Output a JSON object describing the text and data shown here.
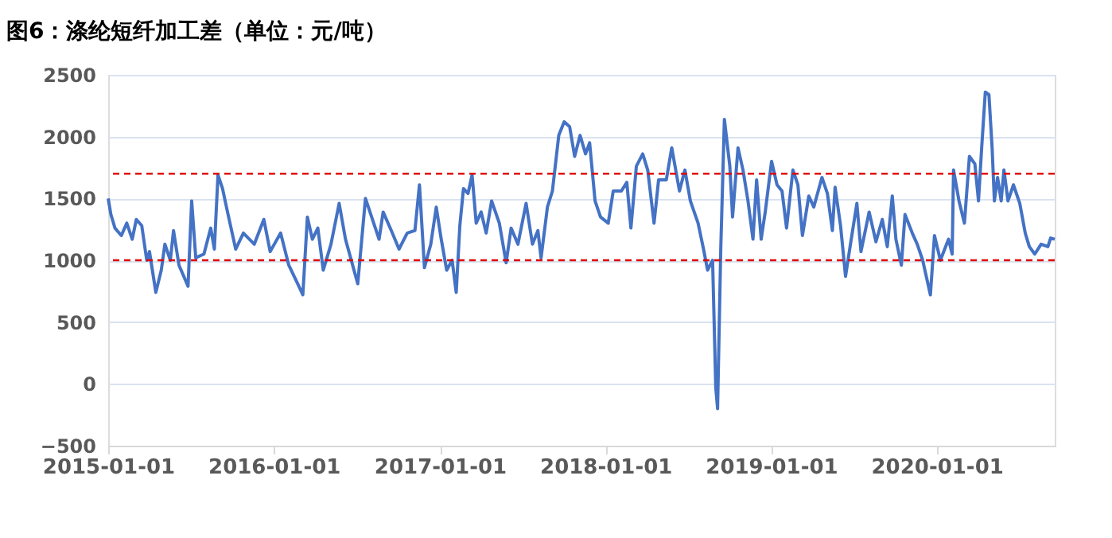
{
  "chart_data": {
    "type": "line",
    "title": "图6：涤纶短纤加工差（单位：元/吨）",
    "x": [
      "2015-01-01",
      "2015-01-07",
      "2015-01-16",
      "2015-01-30",
      "2015-02-11",
      "2015-02-23",
      "2015-03-04",
      "2015-03-16",
      "2015-03-27",
      "2015-04-02",
      "2015-04-16",
      "2015-04-28",
      "2015-05-06",
      "2015-05-18",
      "2015-05-25",
      "2015-06-06",
      "2015-06-26",
      "2015-07-04",
      "2015-07-13",
      "2015-07-31",
      "2015-08-15",
      "2015-08-23",
      "2015-08-31",
      "2015-09-10",
      "2015-09-21",
      "2015-10-09",
      "2015-10-26",
      "2015-11-19",
      "2015-12-10",
      "2015-12-24",
      "2016-01-16",
      "2016-02-03",
      "2016-02-20",
      "2016-03-05",
      "2016-03-15",
      "2016-03-26",
      "2016-04-07",
      "2016-04-19",
      "2016-05-06",
      "2016-05-24",
      "2016-06-07",
      "2016-07-04",
      "2016-07-21",
      "2016-08-20",
      "2016-08-29",
      "2016-09-16",
      "2016-10-03",
      "2016-10-21",
      "2016-11-07",
      "2016-11-17",
      "2016-11-28",
      "2016-12-12",
      "2016-12-24",
      "2017-01-04",
      "2017-01-16",
      "2017-01-28",
      "2017-02-06",
      "2017-02-14",
      "2017-02-22",
      "2017-03-04",
      "2017-03-13",
      "2017-03-22",
      "2017-04-02",
      "2017-04-13",
      "2017-04-25",
      "2017-05-12",
      "2017-05-27",
      "2017-06-07",
      "2017-06-22",
      "2017-07-10",
      "2017-07-24",
      "2017-08-05",
      "2017-08-12",
      "2017-08-26",
      "2017-09-06",
      "2017-09-20",
      "2017-10-02",
      "2017-10-14",
      "2017-10-25",
      "2017-11-06",
      "2017-11-18",
      "2017-11-27",
      "2017-12-09",
      "2017-12-21",
      "2018-01-07",
      "2018-01-18",
      "2018-02-05",
      "2018-02-17",
      "2018-02-26",
      "2018-03-10",
      "2018-03-24",
      "2018-04-04",
      "2018-04-18",
      "2018-04-28",
      "2018-05-15",
      "2018-05-27",
      "2018-06-13",
      "2018-06-25",
      "2018-07-07",
      "2018-07-24",
      "2018-08-05",
      "2018-08-14",
      "2018-08-25",
      "2018-09-01",
      "2018-09-05",
      "2018-09-12",
      "2018-09-20",
      "2018-10-02",
      "2018-10-08",
      "2018-10-20",
      "2018-10-31",
      "2018-11-11",
      "2018-11-22",
      "2018-11-30",
      "2018-12-10",
      "2018-12-19",
      "2019-01-02",
      "2019-01-14",
      "2019-01-25",
      "2019-02-04",
      "2019-02-18",
      "2019-03-01",
      "2019-03-11",
      "2019-03-25",
      "2019-04-05",
      "2019-04-23",
      "2019-05-05",
      "2019-05-16",
      "2019-05-22",
      "2019-06-03",
      "2019-06-14",
      "2019-06-24",
      "2019-07-09",
      "2019-07-18",
      "2019-08-05",
      "2019-08-20",
      "2019-09-03",
      "2019-09-14",
      "2019-09-25",
      "2019-10-03",
      "2019-10-15",
      "2019-10-23",
      "2019-11-08",
      "2019-11-19",
      "2019-12-01",
      "2019-12-18",
      "2019-12-27",
      "2020-01-09",
      "2020-01-27",
      "2020-02-04",
      "2020-02-07",
      "2020-02-19",
      "2020-03-02",
      "2020-03-13",
      "2020-03-25",
      "2020-04-02",
      "2020-04-09",
      "2020-04-17",
      "2020-04-25",
      "2020-05-02",
      "2020-05-07",
      "2020-05-14",
      "2020-05-22",
      "2020-05-28",
      "2020-06-06",
      "2020-06-18",
      "2020-07-02",
      "2020-07-14",
      "2020-07-23",
      "2020-08-04",
      "2020-08-18",
      "2020-09-02",
      "2020-09-08",
      "2020-09-17"
    ],
    "series": [
      {
        "color": "#4472c4",
        "values": [
          1500,
          1370,
          1260,
          1200,
          1300,
          1170,
          1330,
          1280,
          1000,
          1070,
          740,
          920,
          1130,
          1000,
          1240,
          960,
          790,
          1480,
          1020,
          1050,
          1260,
          1090,
          1690,
          1580,
          1390,
          1090,
          1220,
          1130,
          1330,
          1070,
          1220,
          960,
          830,
          720,
          1350,
          1170,
          1260,
          920,
          1130,
          1460,
          1170,
          810,
          1500,
          1170,
          1390,
          1240,
          1090,
          1220,
          1240,
          1610,
          940,
          1130,
          1430,
          1170,
          920,
          1000,
          740,
          1280,
          1580,
          1540,
          1690,
          1300,
          1390,
          1220,
          1480,
          1300,
          980,
          1260,
          1130,
          1460,
          1130,
          1240,
          1020,
          1430,
          1560,
          2010,
          2120,
          2080,
          1840,
          2010,
          1860,
          1950,
          1480,
          1350,
          1300,
          1560,
          1560,
          1630,
          1260,
          1760,
          1860,
          1730,
          1300,
          1650,
          1650,
          1910,
          1560,
          1730,
          1480,
          1300,
          1090,
          920,
          1000,
          -30,
          -200,
          1090,
          2140,
          1760,
          1350,
          1910,
          1730,
          1480,
          1170,
          1650,
          1170,
          1390,
          1800,
          1610,
          1560,
          1260,
          1730,
          1610,
          1200,
          1520,
          1430,
          1670,
          1540,
          1240,
          1590,
          1280,
          870,
          1110,
          1460,
          1070,
          1390,
          1150,
          1330,
          1110,
          1520,
          1170,
          960,
          1370,
          1220,
          1130,
          1000,
          720,
          1200,
          1000,
          1170,
          1050,
          1730,
          1480,
          1300,
          1840,
          1780,
          1480,
          1910,
          2360,
          2340,
          1910,
          1480,
          1670,
          1480,
          1730,
          1480,
          1610,
          1460,
          1220,
          1110,
          1050,
          1130,
          1110,
          1180,
          1170
        ]
      }
    ],
    "xlim": [
      "2015-01-01",
      "2020-09-17"
    ],
    "xticks": [
      "2015-01-01",
      "2016-01-01",
      "2017-01-01",
      "2018-01-01",
      "2019-01-01",
      "2020-01-01"
    ],
    "ylim": [
      -500,
      2500
    ],
    "yticks": [
      -500,
      0,
      500,
      1000,
      1500,
      2000,
      2500
    ],
    "grid": "y",
    "line_style": "solid",
    "marker": "none",
    "ref_lines": [
      {
        "axis": "y",
        "value": 1700,
        "color": "#e00000",
        "line_style": "dashed"
      },
      {
        "axis": "y",
        "value": 1000,
        "color": "#e00000",
        "line_style": "dashed"
      }
    ]
  }
}
